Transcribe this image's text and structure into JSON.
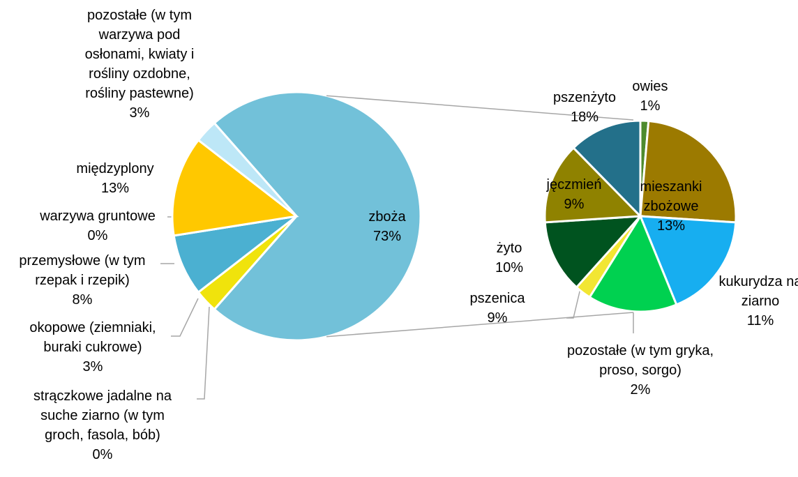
{
  "chart_data": [
    {
      "type": "pie",
      "categories": [
        "zboża",
        "strączkowe jadalne na suche ziarno (w tym groch, fasola, bób)",
        "okopowe (ziemniaki, buraki cukrowe)",
        "przemysłowe (w tym rzepak i rzepik)",
        "warzywa gruntowe",
        "międzyplony",
        "pozostałe (w tym warzywa pod osłonami, kwiaty i rośliny ozdobne, rośliny pastewne)"
      ],
      "values": [
        73,
        0,
        3,
        8,
        0,
        13,
        3
      ],
      "value_labels": [
        "73%",
        "0%",
        "3%",
        "8%",
        "0%",
        "13%",
        "3%"
      ],
      "colors": [
        "#72c1d9",
        "#b8a000",
        "#f0e30c",
        "#4bb0d1",
        "#2e8b57",
        "#ffc800",
        "#bde7f7"
      ]
    },
    {
      "type": "pie",
      "categories": [
        "owies",
        "pszenżyto",
        "mieszanki zbożowe",
        "kukurydza na ziarno",
        "pozostałe (w tym gryka, proso, sorgo)",
        "pszenica",
        "żyto",
        "jęczmień"
      ],
      "values": [
        1,
        18,
        13,
        11,
        2,
        9,
        10,
        9
      ],
      "value_labels": [
        "1%",
        "18%",
        "13%",
        "11%",
        "2%",
        "9%",
        "10%",
        "9%"
      ],
      "colors": [
        "#4e8b2e",
        "#9c7a00",
        "#17aef0",
        "#00d150",
        "#f2e633",
        "#00531f",
        "#8f8200",
        "#23708a"
      ]
    }
  ]
}
